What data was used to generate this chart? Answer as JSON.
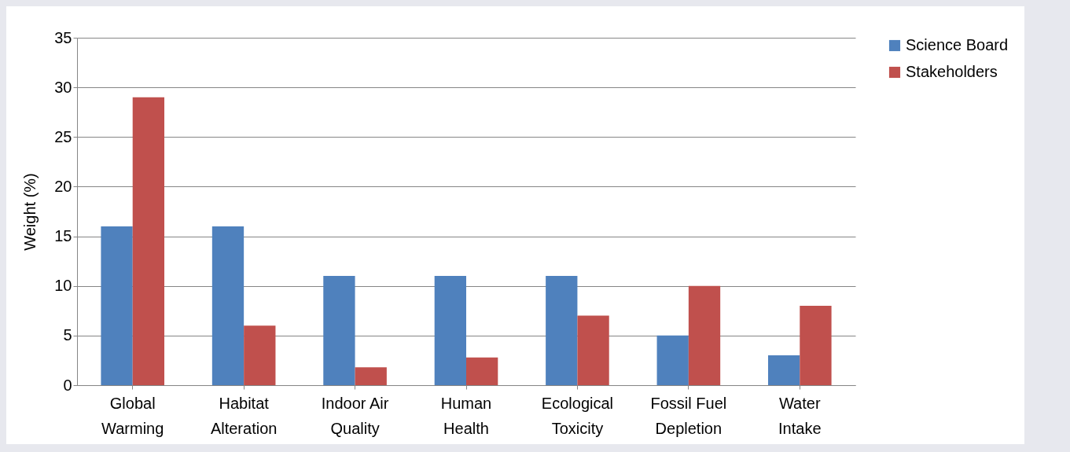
{
  "chart_data": {
    "type": "bar",
    "ylabel": "Weight (%)",
    "categories": [
      "Global Warming",
      "Habitat Alteration",
      "Indoor Air Quality",
      "Human Health",
      "Ecological Toxicity",
      "Fossil Fuel Depletion",
      "Water Intake"
    ],
    "series": [
      {
        "name": "Science Board",
        "color": "#4f81bd",
        "values": [
          16,
          16,
          11,
          11,
          11,
          5,
          3
        ]
      },
      {
        "name": "Stakeholders",
        "color": "#c0504d",
        "values": [
          29,
          6,
          1.8,
          2.8,
          7,
          10,
          8
        ]
      }
    ],
    "ylim": [
      0,
      35
    ],
    "yticks": [
      0,
      5,
      10,
      15,
      20,
      25,
      30,
      35
    ],
    "grid": "y",
    "legend": "right"
  }
}
